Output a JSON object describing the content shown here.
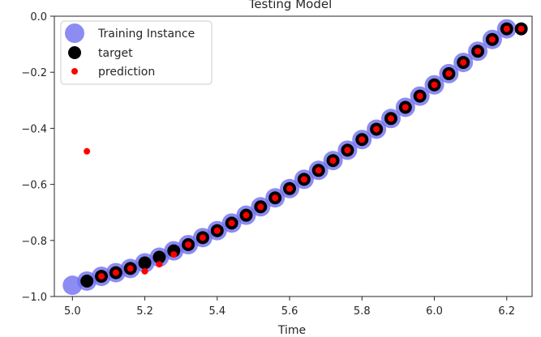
{
  "chart_data": {
    "type": "scatter",
    "title": "Testing Model",
    "xlabel": "Time",
    "ylabel": "",
    "xlim": [
      4.95,
      6.27
    ],
    "ylim": [
      -1.0,
      0.0
    ],
    "xticks": [
      "5.0",
      "5.2",
      "5.4",
      "5.6",
      "5.8",
      "6.0",
      "6.2"
    ],
    "yticks": [
      "0.0",
      "−0.2",
      "−0.4",
      "−0.6",
      "−0.8",
      "−1.0"
    ],
    "grid": false,
    "legend_position": "top-left",
    "series": [
      {
        "name": "Training Instance",
        "color": "#6f6ff0",
        "marker": "large-circle",
        "x": [
          5.0,
          5.04,
          5.08,
          5.12,
          5.16,
          5.2,
          5.24,
          5.28,
          5.32,
          5.36,
          5.4,
          5.44,
          5.48,
          5.52,
          5.56,
          5.6,
          5.64,
          5.68,
          5.72,
          5.76,
          5.8,
          5.84,
          5.88,
          5.92,
          5.96,
          6.0,
          6.04,
          6.08,
          6.12,
          6.16,
          6.2
        ],
        "y": [
          -0.96,
          -0.945,
          -0.928,
          -0.915,
          -0.9,
          -0.88,
          -0.86,
          -0.837,
          -0.815,
          -0.79,
          -0.765,
          -0.738,
          -0.71,
          -0.68,
          -0.648,
          -0.615,
          -0.582,
          -0.55,
          -0.515,
          -0.478,
          -0.44,
          -0.403,
          -0.365,
          -0.325,
          -0.285,
          -0.245,
          -0.205,
          -0.165,
          -0.125,
          -0.083,
          -0.045
        ]
      },
      {
        "name": "target",
        "color": "#000000",
        "marker": "medium-circle",
        "x": [
          5.04,
          5.08,
          5.12,
          5.16,
          5.2,
          5.24,
          5.28,
          5.32,
          5.36,
          5.4,
          5.44,
          5.48,
          5.52,
          5.56,
          5.6,
          5.64,
          5.68,
          5.72,
          5.76,
          5.8,
          5.84,
          5.88,
          5.92,
          5.96,
          6.0,
          6.04,
          6.08,
          6.12,
          6.16,
          6.2,
          6.24
        ],
        "y": [
          -0.945,
          -0.928,
          -0.915,
          -0.9,
          -0.88,
          -0.86,
          -0.837,
          -0.815,
          -0.79,
          -0.765,
          -0.738,
          -0.71,
          -0.68,
          -0.648,
          -0.615,
          -0.582,
          -0.55,
          -0.515,
          -0.478,
          -0.44,
          -0.403,
          -0.365,
          -0.325,
          -0.285,
          -0.245,
          -0.205,
          -0.165,
          -0.125,
          -0.083,
          -0.045,
          -0.045
        ]
      },
      {
        "name": "prediction",
        "color": "#ff0000",
        "marker": "small-circle",
        "x": [
          5.04,
          5.08,
          5.12,
          5.16,
          5.2,
          5.24,
          5.28,
          5.32,
          5.36,
          5.4,
          5.44,
          5.48,
          5.52,
          5.56,
          5.6,
          5.64,
          5.68,
          5.72,
          5.76,
          5.8,
          5.84,
          5.88,
          5.92,
          5.96,
          6.0,
          6.04,
          6.08,
          6.12,
          6.16,
          6.2,
          6.24
        ],
        "y": [
          -0.482,
          -0.928,
          -0.915,
          -0.9,
          -0.91,
          -0.885,
          -0.85,
          -0.815,
          -0.79,
          -0.765,
          -0.738,
          -0.71,
          -0.68,
          -0.648,
          -0.615,
          -0.582,
          -0.55,
          -0.515,
          -0.478,
          -0.44,
          -0.403,
          -0.365,
          -0.325,
          -0.285,
          -0.245,
          -0.205,
          -0.165,
          -0.125,
          -0.083,
          -0.045,
          -0.045
        ]
      }
    ]
  }
}
